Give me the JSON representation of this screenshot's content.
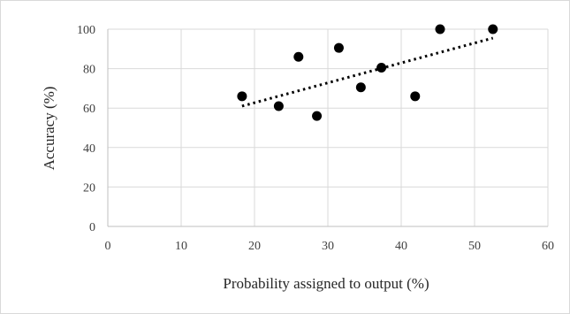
{
  "chart_data": {
    "type": "scatter",
    "title": "",
    "xlabel": "Probability assigned to output (%)",
    "ylabel": "Accuracy (%)",
    "xlim": [
      0,
      60
    ],
    "ylim": [
      0,
      100
    ],
    "x_ticks": [
      0,
      10,
      20,
      30,
      40,
      50,
      60
    ],
    "y_ticks": [
      0,
      20,
      40,
      60,
      80,
      100
    ],
    "grid": true,
    "legend": "none",
    "marker_color": "#000000",
    "trendline": {
      "type": "linear",
      "style": "dotted",
      "color": "#000000",
      "x_start": 18.3,
      "x_end": 52.5,
      "y_start": 61,
      "y_end": 95.5
    },
    "series": [
      {
        "points": [
          {
            "x": 18.3,
            "y": 66
          },
          {
            "x": 23.3,
            "y": 61
          },
          {
            "x": 26.0,
            "y": 86
          },
          {
            "x": 28.5,
            "y": 56
          },
          {
            "x": 31.5,
            "y": 90.5
          },
          {
            "x": 34.5,
            "y": 70.5
          },
          {
            "x": 37.3,
            "y": 80.5
          },
          {
            "x": 41.9,
            "y": 66
          },
          {
            "x": 45.3,
            "y": 100
          },
          {
            "x": 52.5,
            "y": 100
          }
        ]
      }
    ]
  }
}
